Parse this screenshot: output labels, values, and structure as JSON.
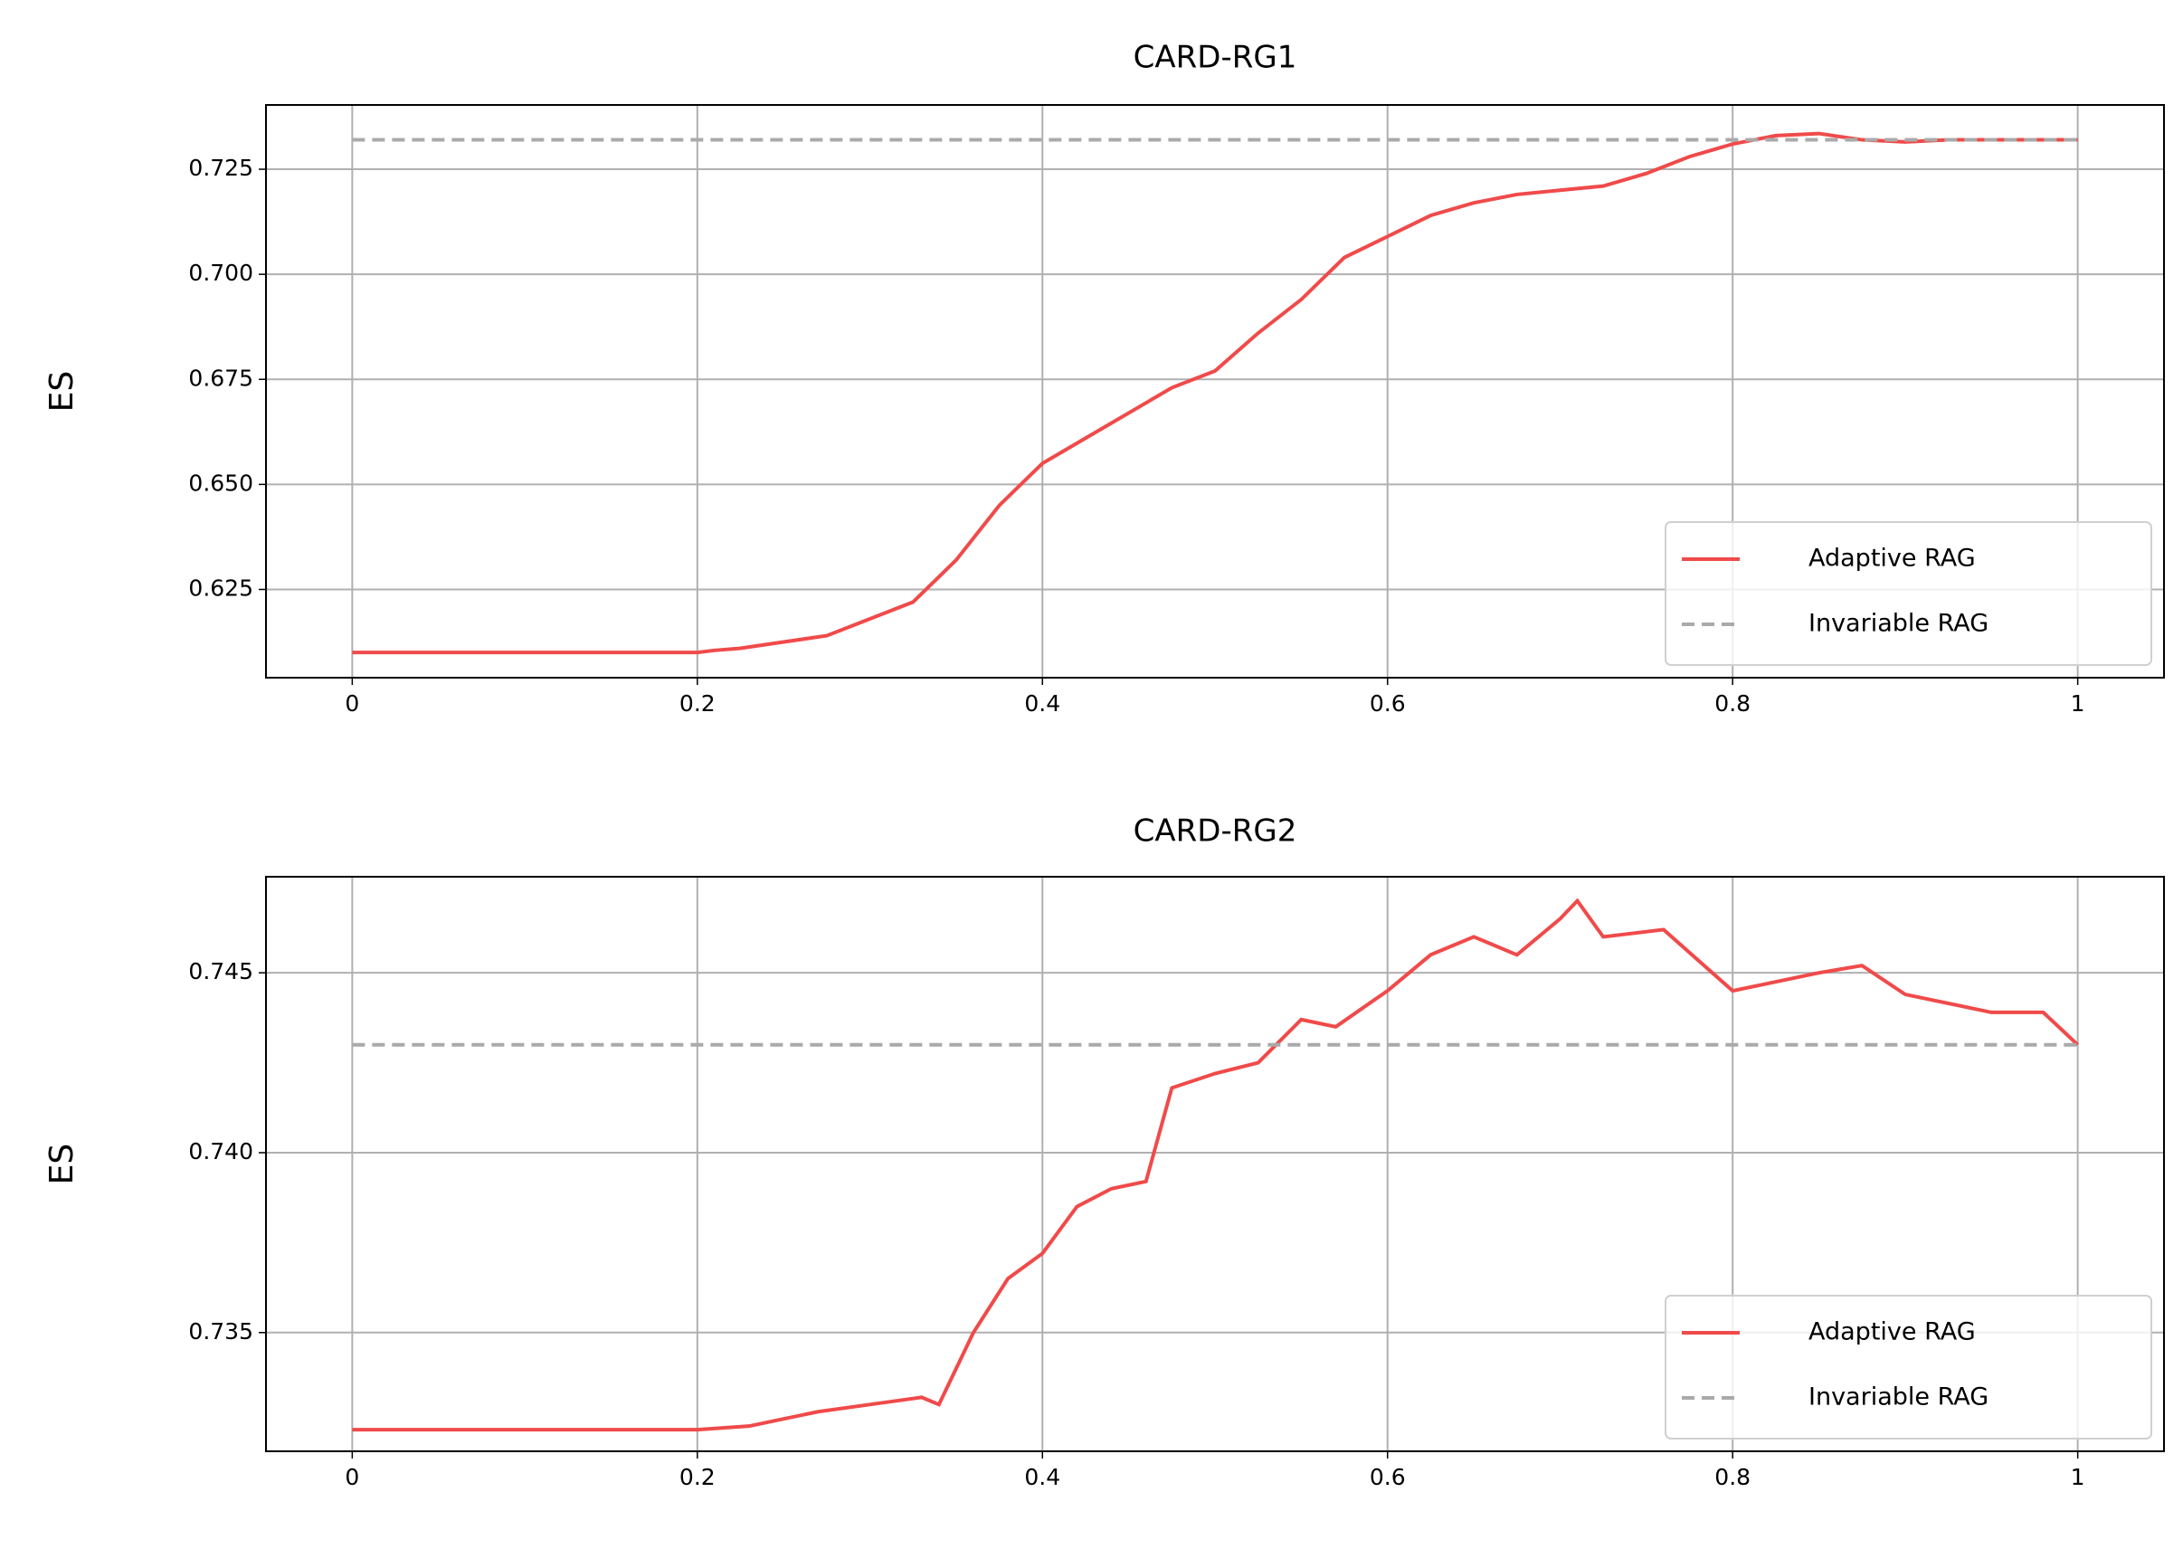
{
  "chart_data": [
    {
      "type": "line",
      "title": "CARD-RG1",
      "y_label": "ES",
      "xlim": [
        -0.05,
        1.05
      ],
      "xticks": [
        0,
        0.2,
        0.4,
        0.6,
        0.8,
        1
      ],
      "ylim": [
        0.604,
        0.7403
      ],
      "yticks": [
        0.625,
        {
          "value": 0.65,
          "label": "0.650"
        },
        0.675,
        {
          "value": 0.7,
          "label": "0.700"
        },
        0.725
      ],
      "grid": true,
      "legend": "lower right",
      "series": [
        {
          "name": "Adaptive RAG",
          "color": "#f04a4a",
          "dash": "solid",
          "x": [
            0,
            0.2,
            0.21,
            0.225,
            0.25,
            0.275,
            0.3,
            0.325,
            0.35,
            0.375,
            0.4,
            0.425,
            0.45,
            0.475,
            0.5,
            0.525,
            0.55,
            0.575,
            0.6,
            0.625,
            0.65,
            0.675,
            0.7,
            0.725,
            0.75,
            0.775,
            0.8,
            0.825,
            0.85,
            0.875,
            0.9,
            0.925,
            0.95,
            1
          ],
          "values": [
            0.61,
            0.61,
            0.6105,
            0.611,
            0.6125,
            0.614,
            0.618,
            0.622,
            0.632,
            0.645,
            0.655,
            0.661,
            0.667,
            0.673,
            0.677,
            0.686,
            0.694,
            0.704,
            0.709,
            0.714,
            0.717,
            0.719,
            0.72,
            0.721,
            0.724,
            0.728,
            0.731,
            0.733,
            0.7335,
            0.732,
            0.7315,
            0.732,
            0.732,
            0.732
          ]
        },
        {
          "name": "Invariable RAG",
          "color": "#aaaaaa",
          "dash": "dashed",
          "x": [
            0,
            1
          ],
          "values": [
            0.732,
            0.732
          ]
        }
      ]
    },
    {
      "type": "line",
      "title": "CARD-RG2",
      "y_label": "ES",
      "xlim": [
        -0.05,
        1.05
      ],
      "xticks": [
        0,
        0.2,
        0.4,
        0.6,
        0.8,
        1
      ],
      "ylim": [
        0.7317,
        0.74767
      ],
      "yticks": [
        0.735,
        {
          "value": 0.74,
          "label": "0.740"
        },
        0.745
      ],
      "grid": true,
      "legend": "lower right",
      "series": [
        {
          "name": "Adaptive RAG",
          "color": "#f04a4a",
          "dash": "solid",
          "x": [
            0,
            0.2,
            0.23,
            0.25,
            0.27,
            0.3,
            0.33,
            0.34,
            0.36,
            0.38,
            0.4,
            0.42,
            0.44,
            0.46,
            0.475,
            0.5,
            0.525,
            0.55,
            0.57,
            0.6,
            0.625,
            0.65,
            0.675,
            0.7,
            0.71,
            0.725,
            0.76,
            0.8,
            0.85,
            0.875,
            0.9,
            0.95,
            0.98,
            1
          ],
          "values": [
            0.7323,
            0.7323,
            0.7324,
            0.7326,
            0.7328,
            0.733,
            0.7332,
            0.733,
            0.735,
            0.7365,
            0.7372,
            0.7385,
            0.739,
            0.7392,
            0.7418,
            0.7422,
            0.7425,
            0.7437,
            0.7435,
            0.7445,
            0.7455,
            0.746,
            0.7455,
            0.7465,
            0.747,
            0.746,
            0.7462,
            0.7445,
            0.745,
            0.7452,
            0.7444,
            0.7439,
            0.7439,
            0.743
          ]
        },
        {
          "name": "Invariable RAG",
          "color": "#aaaaaa",
          "dash": "dashed",
          "x": [
            0,
            1
          ],
          "values": [
            0.743,
            0.743
          ]
        }
      ]
    }
  ]
}
